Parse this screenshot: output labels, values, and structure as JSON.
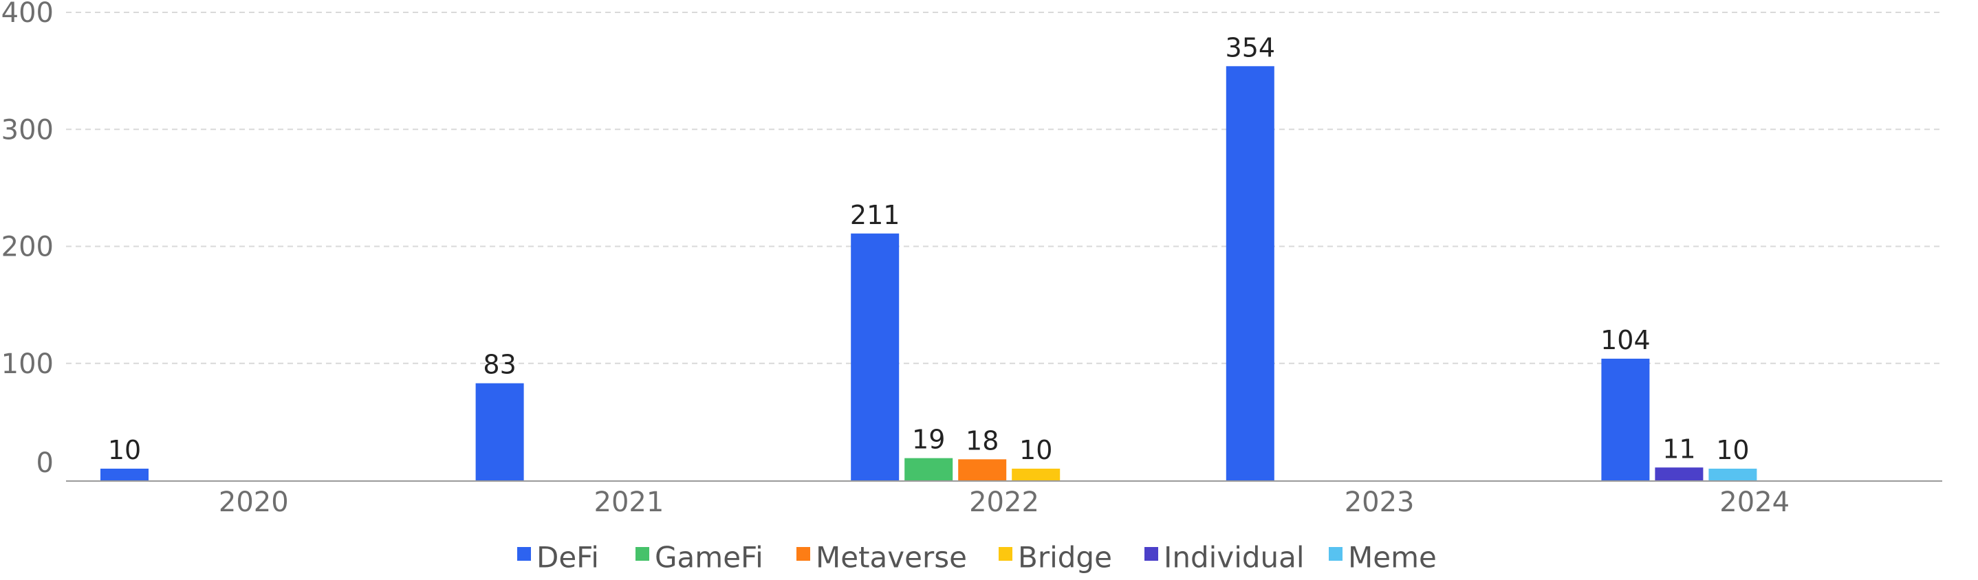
{
  "chart_data": {
    "type": "bar",
    "categories": [
      "2020",
      "2021",
      "2022",
      "2023",
      "2024"
    ],
    "series": [
      {
        "name": "DeFi",
        "color": "#2d63f0",
        "values": [
          10,
          83,
          211,
          354,
          104
        ]
      },
      {
        "name": "GameFi",
        "color": "#46c26a",
        "values": [
          null,
          null,
          19,
          null,
          null
        ]
      },
      {
        "name": "Metaverse",
        "color": "#fd7d15",
        "values": [
          null,
          null,
          18,
          null,
          null
        ]
      },
      {
        "name": "Bridge",
        "color": "#fdc70f",
        "values": [
          null,
          null,
          10,
          null,
          null
        ]
      },
      {
        "name": "Individual",
        "color": "#4b40c9",
        "values": [
          null,
          null,
          null,
          null,
          11
        ]
      },
      {
        "name": "Meme",
        "color": "#57c2f1",
        "values": [
          null,
          null,
          null,
          null,
          10
        ]
      }
    ],
    "y_ticks": [
      0,
      100,
      200,
      300,
      400
    ],
    "ylim": [
      0,
      400
    ],
    "grid": true,
    "legend_position": "bottom",
    "title": "",
    "xlabel": "",
    "ylabel": ""
  }
}
